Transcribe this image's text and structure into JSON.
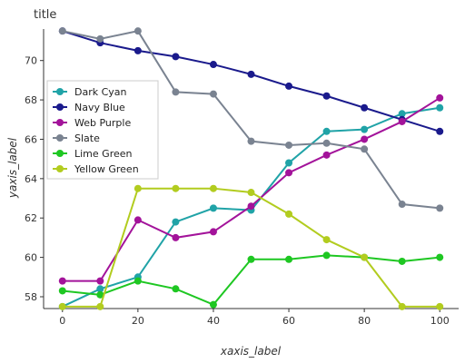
{
  "chart_data": {
    "type": "line",
    "title": "title",
    "xlabel": "xaxis_label",
    "ylabel": "yaxis_label",
    "xlim": [
      -5,
      105
    ],
    "ylim": [
      57.4,
      71.6
    ],
    "x_ticks": [
      0,
      20,
      40,
      60,
      80,
      100
    ],
    "y_ticks": [
      58,
      60,
      62,
      64,
      66,
      68,
      70
    ],
    "grid": false,
    "legend_position": "left",
    "x": [
      0,
      10,
      20,
      30,
      40,
      50,
      60,
      70,
      80,
      90,
      100
    ],
    "series": [
      {
        "name": "Dark Cyan",
        "color": "#20a3a7",
        "values": [
          57.5,
          58.4,
          59.0,
          61.8,
          62.5,
          62.4,
          64.8,
          66.4,
          66.5,
          67.3,
          67.6
        ]
      },
      {
        "name": "Navy Blue",
        "color": "#1a1a8c",
        "values": [
          71.5,
          70.9,
          70.5,
          70.2,
          69.8,
          69.3,
          68.7,
          68.2,
          67.6,
          67.0,
          66.4
        ]
      },
      {
        "name": "Web Purple",
        "color": "#a3139a",
        "values": [
          58.8,
          58.8,
          61.9,
          61.0,
          61.3,
          62.6,
          64.3,
          65.2,
          66.0,
          66.9,
          68.1
        ]
      },
      {
        "name": "Slate",
        "color": "#7a8391",
        "values": [
          71.5,
          71.1,
          71.5,
          68.4,
          68.3,
          65.9,
          65.7,
          65.8,
          65.5,
          62.7,
          62.5
        ]
      },
      {
        "name": "Lime Green",
        "color": "#1ec722",
        "values": [
          58.3,
          58.1,
          58.8,
          58.4,
          57.6,
          59.9,
          59.9,
          60.1,
          60.0,
          59.8,
          60.0
        ]
      },
      {
        "name": "Yellow Green",
        "color": "#b2cc1f",
        "values": [
          57.5,
          57.5,
          63.5,
          63.5,
          63.5,
          63.3,
          62.2,
          60.9,
          60.0,
          57.5,
          57.5
        ]
      }
    ]
  }
}
